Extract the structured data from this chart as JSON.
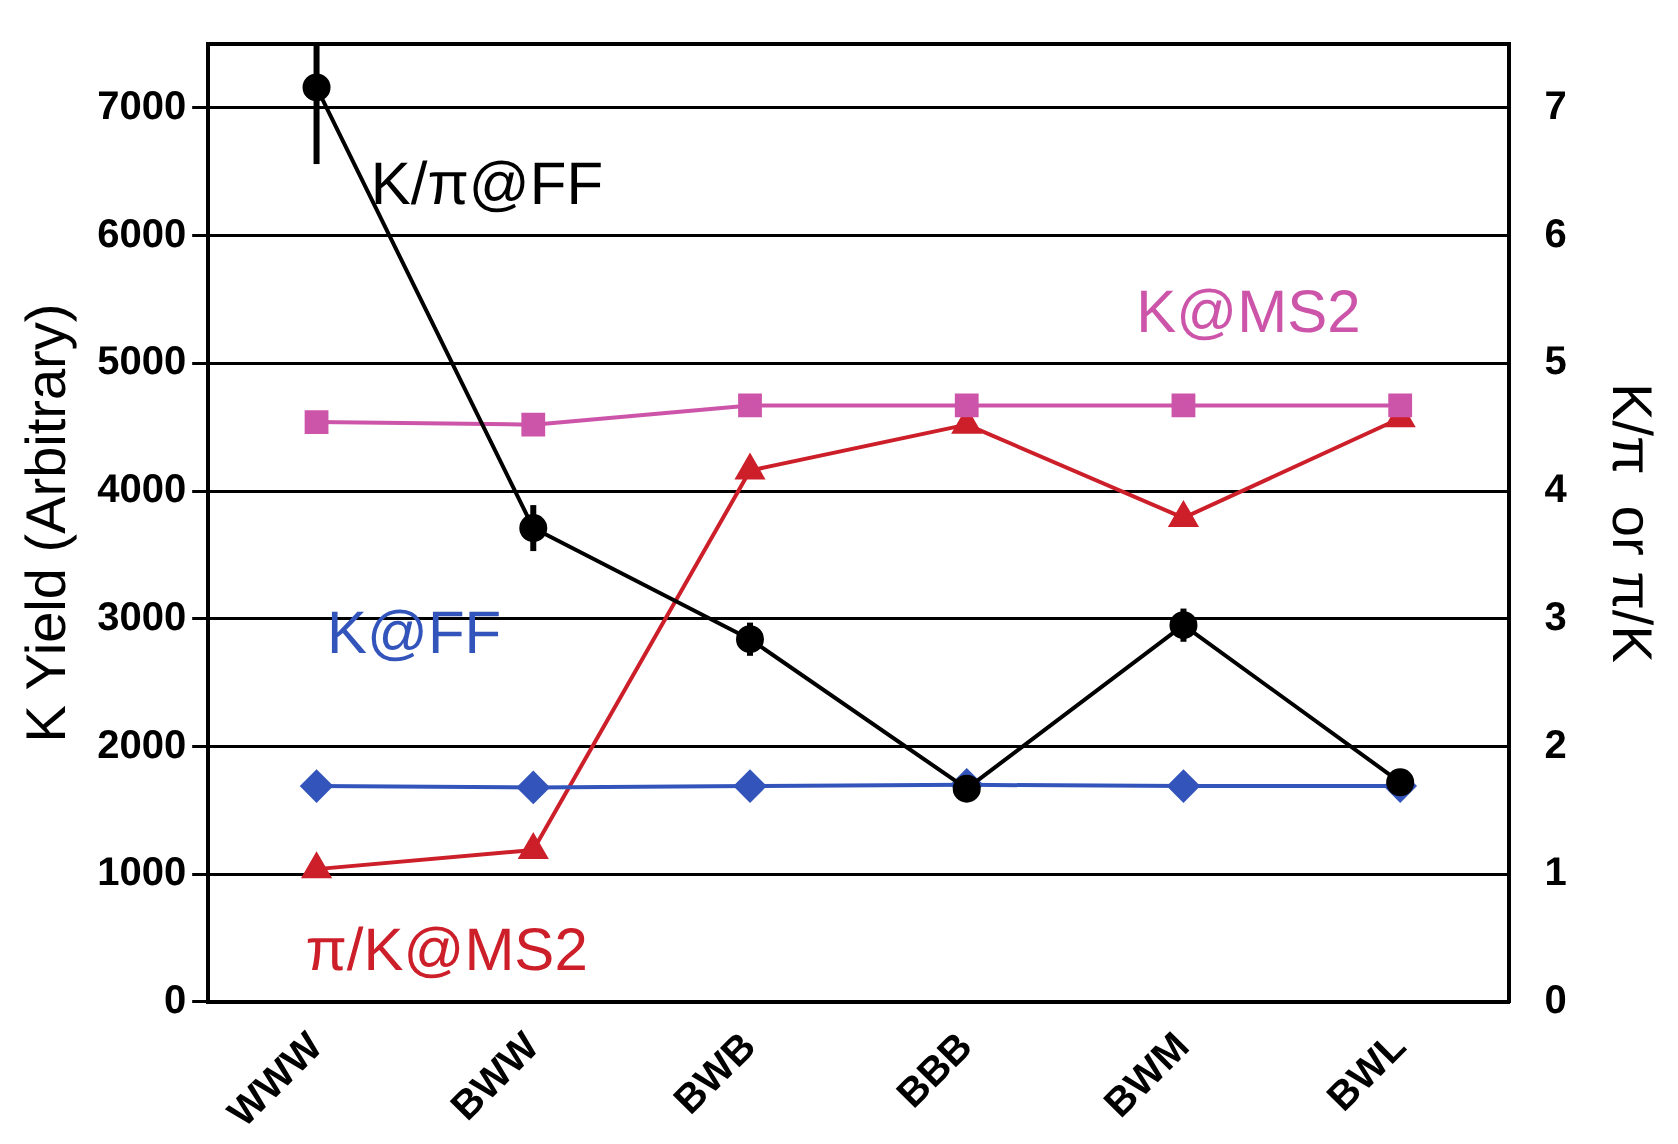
{
  "chart_data": {
    "type": "line",
    "ylabel": "K Yield (Arbitrary)",
    "y2label": "K/π  or π/K",
    "categories": [
      "WWW",
      "BWW",
      "BWB",
      "BBB",
      "BWM",
      "BWL"
    ],
    "series": [
      {
        "name": "K/π@FF",
        "color": "#000000",
        "axis": "y2",
        "marker": "circle",
        "values": [
          7.16,
          3.71,
          2.84,
          1.67,
          2.95,
          1.72
        ],
        "errors": [
          [
            6.56,
            7.5
          ],
          0.18,
          0.13,
          null,
          0.13,
          null
        ]
      },
      {
        "name": "K@MS2",
        "color": "#cc55aa",
        "marker": "square",
        "values": [
          4540,
          4520,
          4670,
          4670,
          4670,
          4670
        ]
      },
      {
        "name": "K@FF",
        "color": "#3355bb",
        "marker": "diamond",
        "values": [
          1690,
          1680,
          1690,
          1700,
          1690,
          1690
        ]
      },
      {
        "name": "π/K@MS2",
        "color": "#cc1f2a",
        "axis": "y2",
        "marker": "triangle",
        "values": [
          1.04,
          1.19,
          4.16,
          4.52,
          3.79,
          4.57
        ]
      }
    ],
    "ylim": [
      0,
      7500
    ],
    "yticks": [
      0,
      1000,
      2000,
      3000,
      4000,
      5000,
      6000,
      7000
    ],
    "y2lim": [
      0,
      7.5
    ],
    "y2ticks": [
      0,
      1,
      2,
      3,
      4,
      5,
      6,
      7
    ],
    "grid": "y",
    "legend": false,
    "line_style": "solid"
  }
}
